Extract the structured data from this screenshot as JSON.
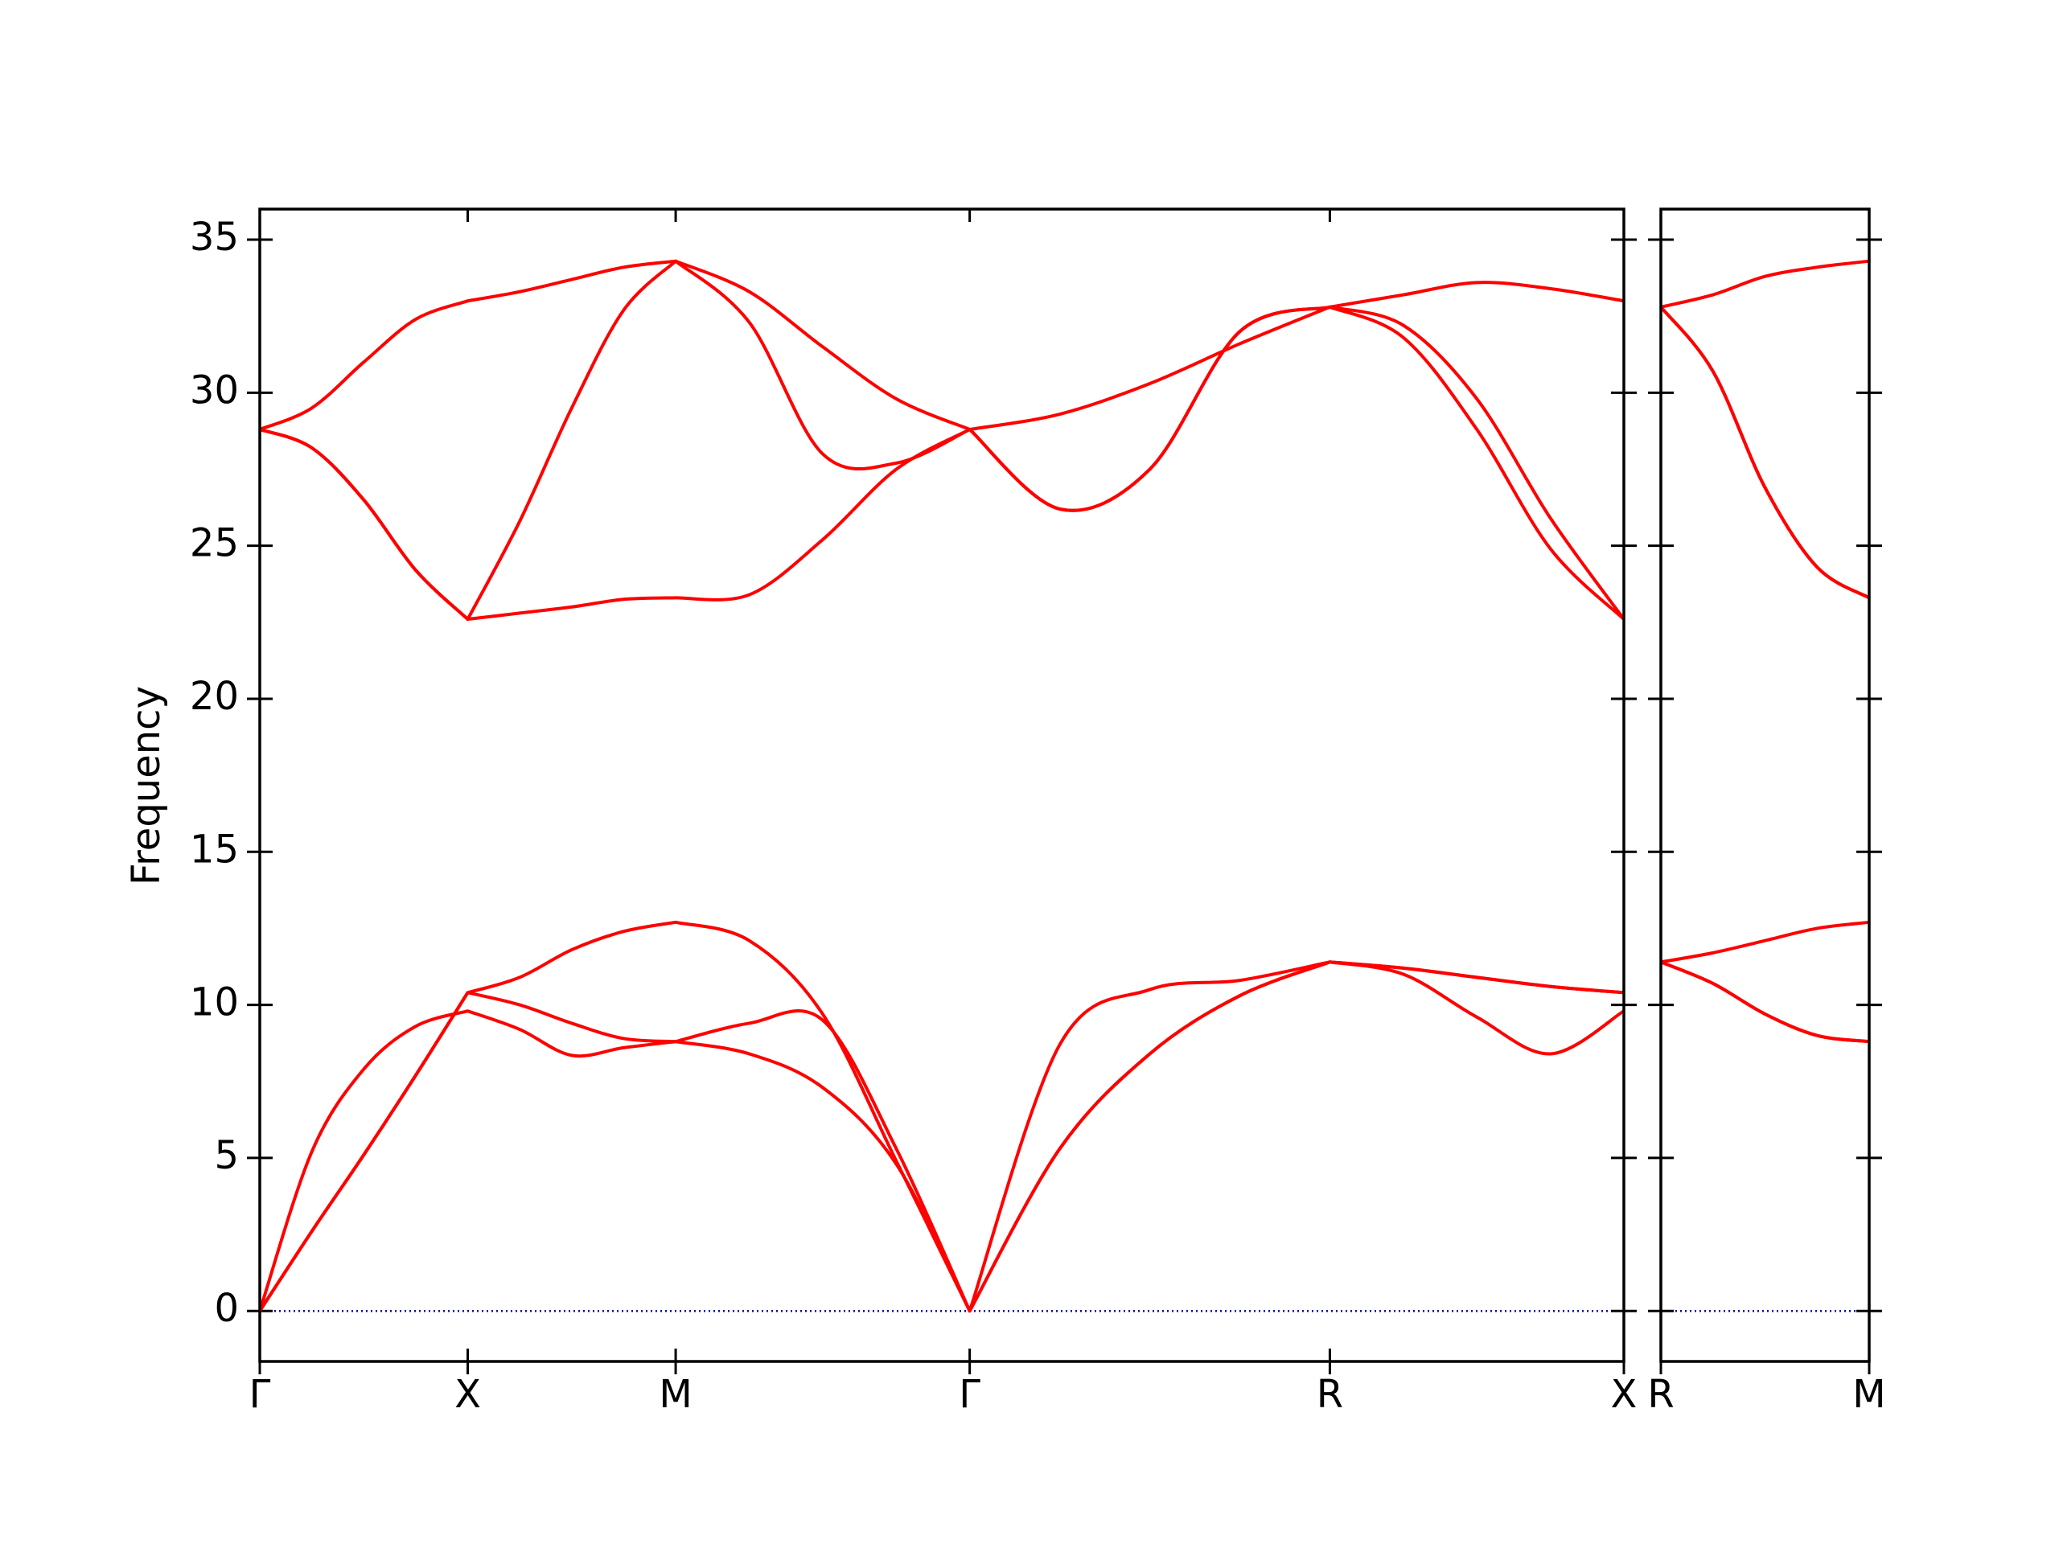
{
  "chart_data": [
    {
      "type": "line",
      "ylabel": "Frequency",
      "x": [
        0,
        0.25,
        0.5,
        0.75,
        1,
        1.25,
        1.5,
        1.75,
        2,
        2.354,
        2.707,
        3.061,
        3.414,
        3.847,
        4.28,
        4.713,
        5.146,
        5.5,
        5.853,
        6.207,
        6.56
      ],
      "xlim": [
        0,
        6.56
      ],
      "xticks": [
        {
          "value": 0,
          "label": "Γ"
        },
        {
          "value": 1,
          "label": "X"
        },
        {
          "value": 2,
          "label": "M"
        },
        {
          "value": 3.414,
          "label": "Γ"
        },
        {
          "value": 5.146,
          "label": "R"
        },
        {
          "value": 6.56,
          "label": "X"
        }
      ],
      "ylim": [
        -1.65,
        36
      ],
      "yticks": [
        0,
        5,
        10,
        15,
        20,
        25,
        30,
        35
      ],
      "reference_line": {
        "y": 0,
        "color": "#0000aa"
      },
      "series": [
        {
          "color": "#ff0000",
          "values": [
            0,
            5.2,
            7.9,
            9.3,
            9.8,
            9.2,
            8.35,
            8.6,
            8.8,
            8.4,
            7.3,
            4.8,
            0,
            5.3,
            8.4,
            10.3,
            11.4,
            11.2,
            10.9,
            10.6,
            10.4
          ]
        },
        {
          "color": "#ff0000",
          "values": [
            0,
            2.6,
            5.1,
            7.7,
            10.4,
            10.0,
            9.4,
            8.9,
            8.8,
            9.4,
            9.5,
            5.3,
            0,
            8.7,
            10.5,
            10.8,
            11.4,
            11.0,
            9.6,
            8.4,
            9.8
          ]
        },
        {
          "color": "#ff0000",
          "values": [
            0,
            2.6,
            5.1,
            7.7,
            10.4,
            10.9,
            11.8,
            12.4,
            12.7,
            12.1,
            9.7,
            4.9,
            0,
            5.3,
            8.4,
            10.3,
            11.4,
            11.2,
            10.9,
            10.6,
            10.4
          ]
        },
        {
          "color": "#ff0000",
          "values": [
            28.8,
            28.2,
            26.5,
            24.2,
            22.6,
            22.8,
            23.0,
            23.25,
            23.3,
            23.4,
            25.2,
            27.5,
            28.8,
            26.2,
            27.5,
            32.0,
            32.8,
            31.8,
            28.8,
            24.9,
            22.6
          ]
        },
        {
          "color": "#ff0000",
          "values": [
            28.8,
            28.2,
            26.5,
            24.2,
            22.6,
            25.8,
            29.5,
            32.7,
            34.3,
            32.3,
            28.0,
            27.7,
            28.8,
            26.2,
            27.5,
            32.0,
            32.8,
            32.2,
            29.8,
            25.9,
            22.6
          ]
        },
        {
          "color": "#ff0000",
          "values": [
            28.8,
            29.5,
            31.0,
            32.4,
            33.0,
            33.3,
            33.7,
            34.1,
            34.3,
            33.3,
            31.5,
            29.8,
            28.8,
            29.3,
            30.3,
            31.6,
            32.8,
            33.2,
            33.6,
            33.4,
            33.0
          ]
        }
      ]
    },
    {
      "type": "line",
      "x": [
        0,
        0.25,
        0.5,
        0.75,
        1
      ],
      "xlim": [
        0,
        1
      ],
      "xticks": [
        {
          "value": 0,
          "label": "R"
        },
        {
          "value": 1,
          "label": "M"
        }
      ],
      "ylim": [
        -1.65,
        36
      ],
      "yticks": [
        0,
        5,
        10,
        15,
        20,
        25,
        30,
        35
      ],
      "reference_line": {
        "y": 0,
        "color": "#0000aa"
      },
      "series": [
        {
          "color": "#ff0000",
          "values": [
            11.4,
            11.7,
            12.1,
            12.5,
            12.7
          ]
        },
        {
          "color": "#ff0000",
          "values": [
            11.4,
            10.7,
            9.7,
            9.0,
            8.8
          ]
        },
        {
          "color": "#ff0000",
          "values": [
            11.4,
            10.7,
            9.7,
            9.0,
            8.8
          ]
        },
        {
          "color": "#ff0000",
          "values": [
            32.8,
            30.7,
            26.9,
            24.3,
            23.3
          ]
        },
        {
          "color": "#ff0000",
          "values": [
            32.8,
            30.7,
            26.9,
            24.3,
            23.3
          ]
        },
        {
          "color": "#ff0000",
          "values": [
            32.8,
            33.2,
            33.8,
            34.1,
            34.3
          ]
        }
      ]
    }
  ]
}
